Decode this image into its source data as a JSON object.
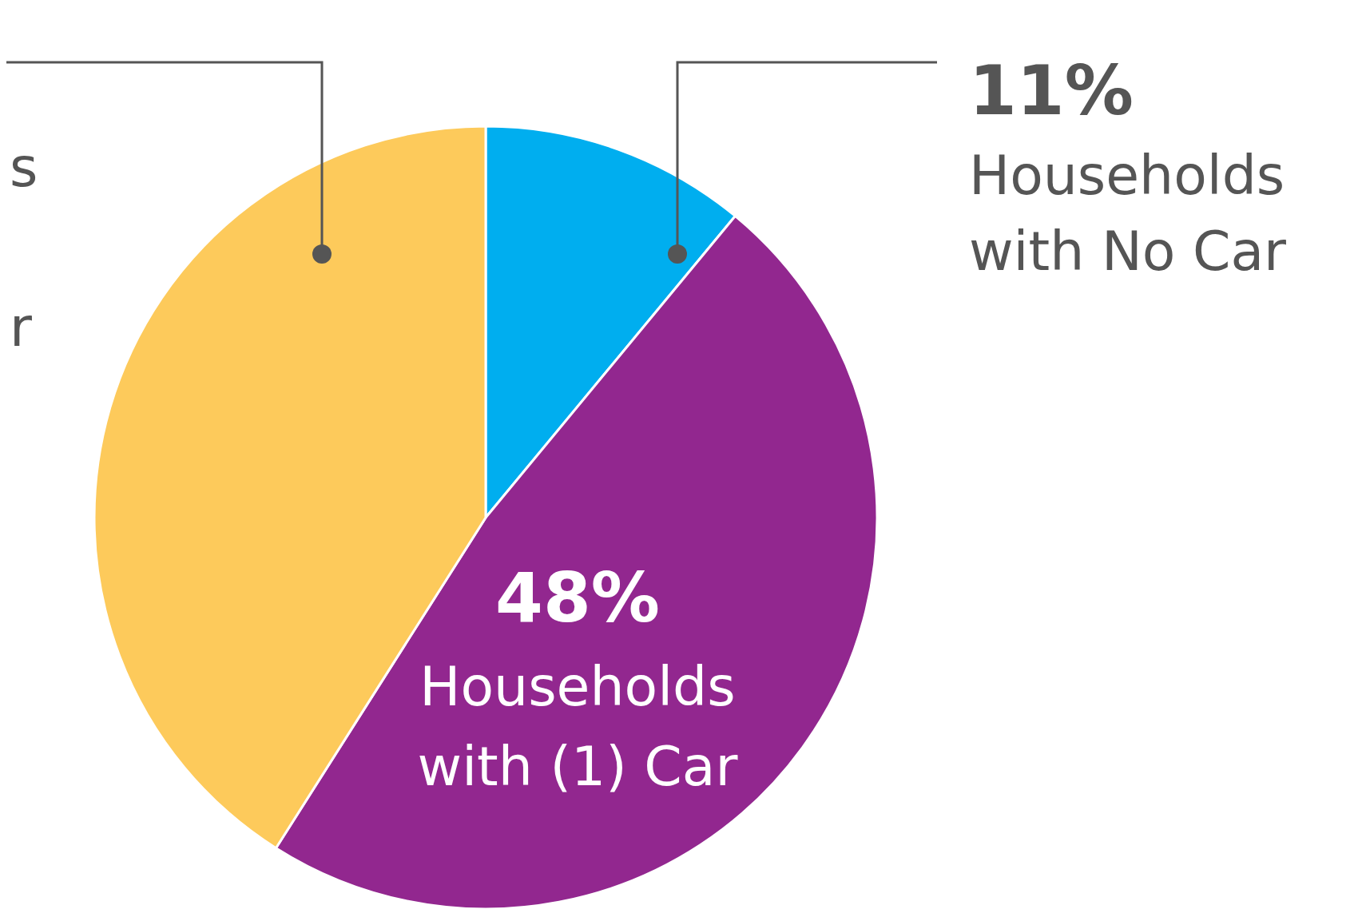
{
  "chart_data": {
    "type": "pie",
    "categories": [
      "Households with No Car",
      "Households with (1) Car",
      null
    ],
    "values": [
      11,
      48,
      41
    ],
    "colors": [
      "#00aeef",
      "#92278f",
      "#fdca5b"
    ],
    "value_labels": [
      "11%",
      "48%",
      null
    ],
    "annotations": [
      "s",
      "r"
    ]
  }
}
